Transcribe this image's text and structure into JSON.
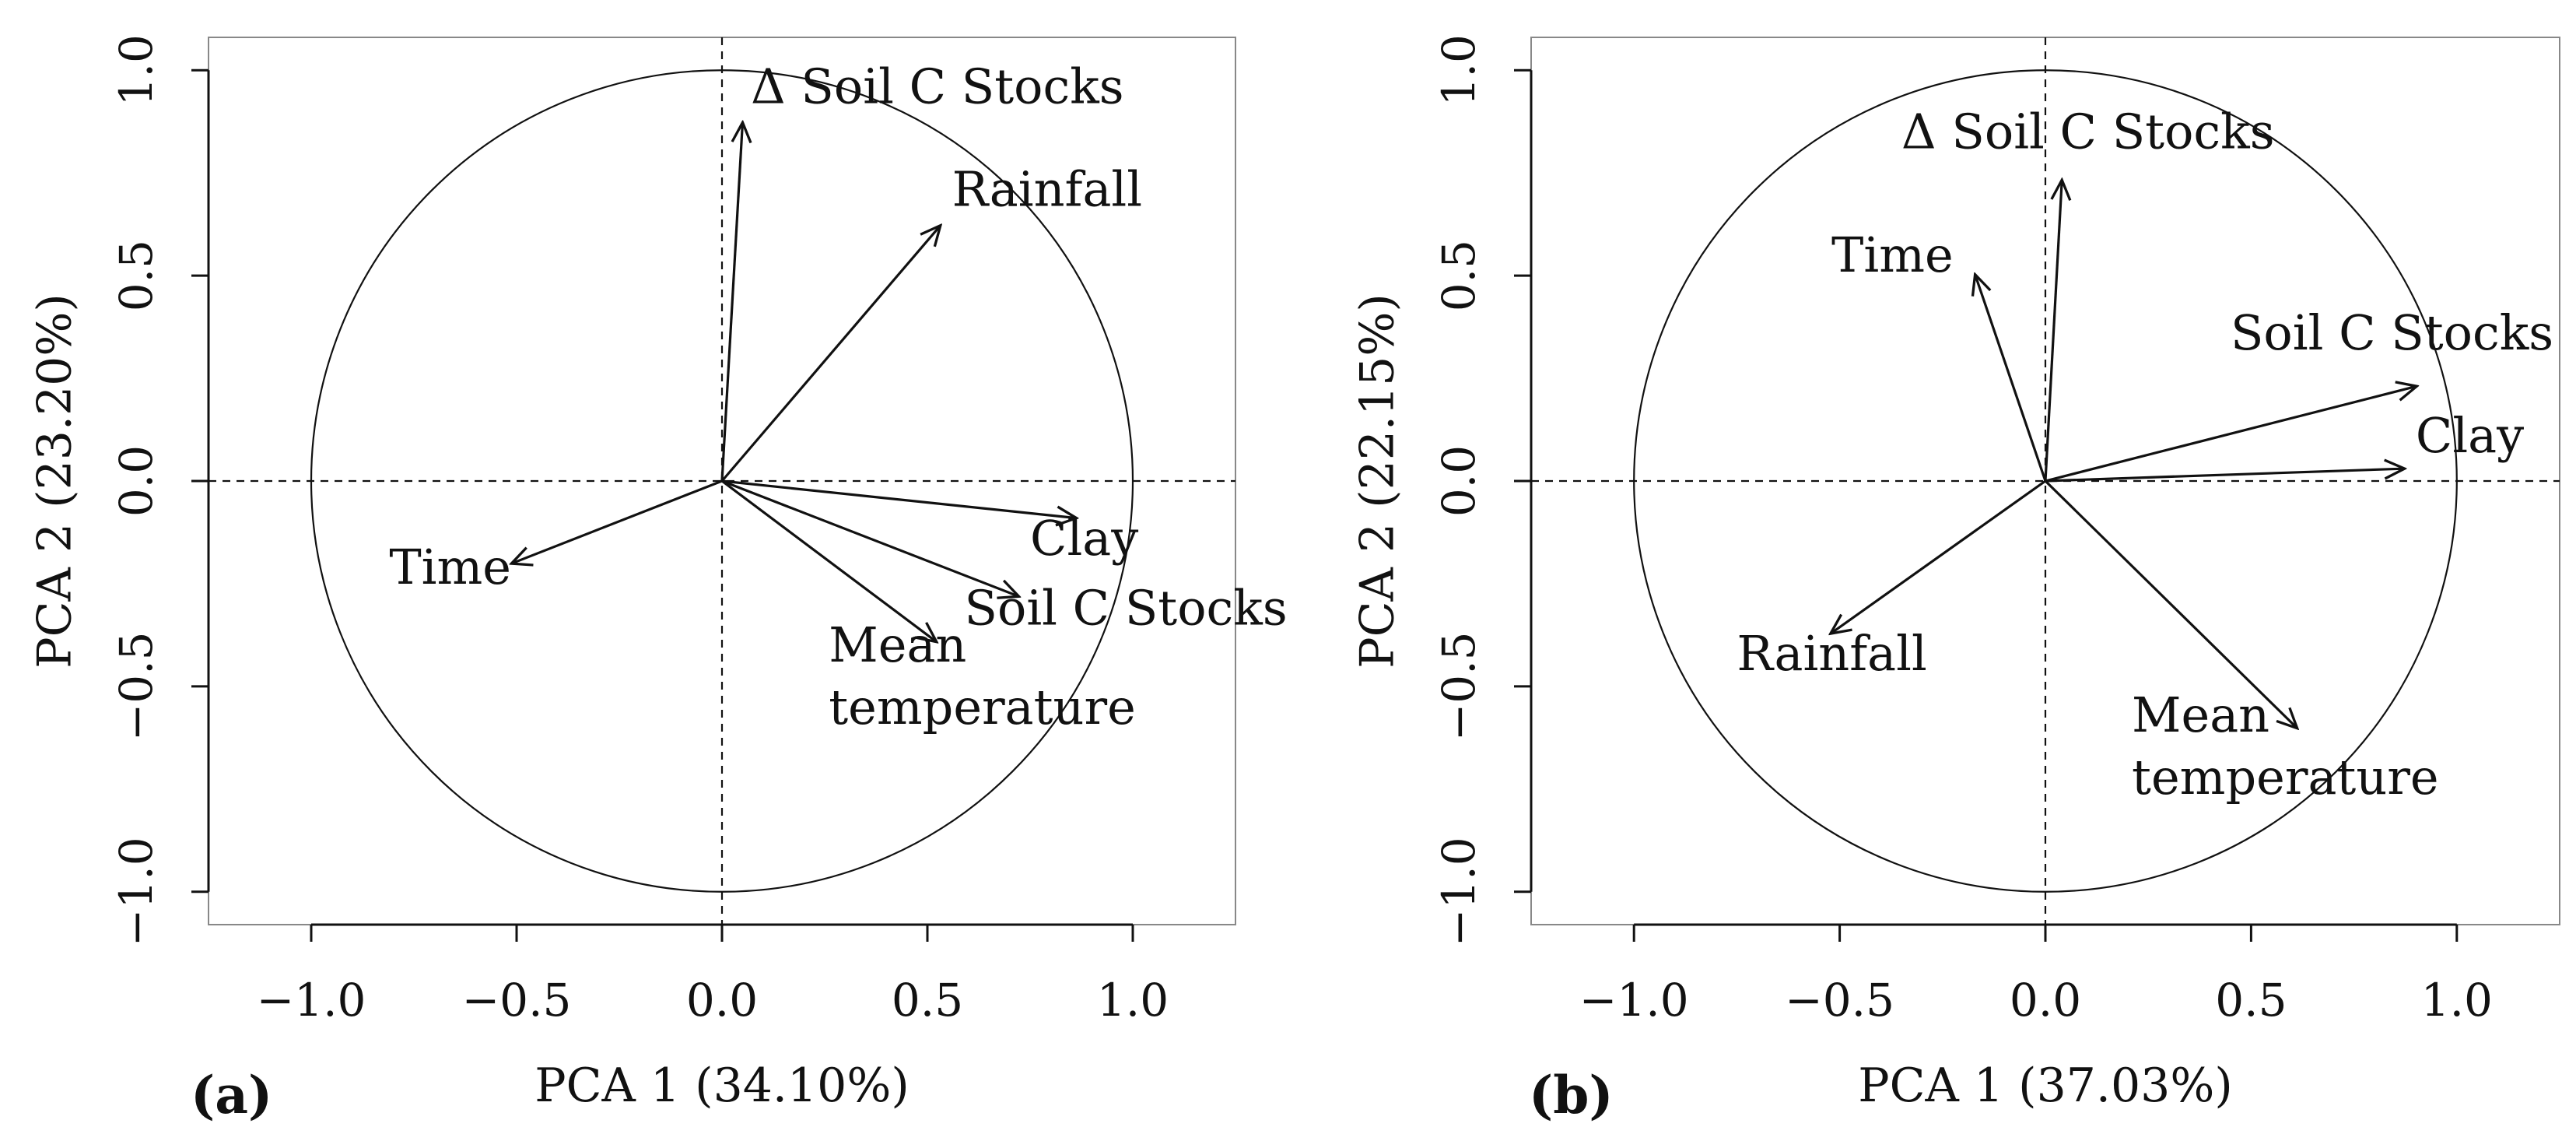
{
  "chart_data": [
    {
      "type": "scatter",
      "subtype": "pca-correlation-circle",
      "panel_label": "(a)",
      "xlabel": "PCA 1 (34.10%)",
      "ylabel": "PCA 2 (23.20%)",
      "xlim": [
        -1.25,
        1.25
      ],
      "ylim": [
        -1.08,
        1.08
      ],
      "xticks": [
        -1.0,
        -0.5,
        0.0,
        0.5,
        1.0
      ],
      "xtick_labels": [
        "−1.0",
        "−0.5",
        "0.0",
        "0.5",
        "1.0"
      ],
      "yticks": [
        -1.0,
        -0.5,
        0.0,
        0.5,
        1.0
      ],
      "ytick_labels": [
        "−1.0",
        "−0.5",
        "0.0",
        "0.5",
        "1.0"
      ],
      "circle_radius": 1.0,
      "reference_lines": "dashed at x=0 and y=0",
      "vectors": [
        {
          "name": "Δ Soil C Stocks",
          "x": 0.05,
          "y": 0.87,
          "label_lines": [
            "Δ Soil C Stocks"
          ],
          "label_x": 0.07,
          "label_y": 0.92
        },
        {
          "name": "Rainfall",
          "x": 0.53,
          "y": 0.62,
          "label_lines": [
            "Rainfall"
          ],
          "label_x": 0.56,
          "label_y": 0.67
        },
        {
          "name": "Clay",
          "x": 0.86,
          "y": -0.09,
          "label_lines": [
            "Clay"
          ],
          "label_x": 0.75,
          "label_y": -0.18
        },
        {
          "name": "Soil C Stocks",
          "x": 0.72,
          "y": -0.28,
          "label_lines": [
            "Soil C Stocks"
          ],
          "label_x": 0.59,
          "label_y": -0.35
        },
        {
          "name": "Mean temperature",
          "x": 0.52,
          "y": -0.39,
          "label_lines": [
            "Mean",
            "temperature"
          ],
          "label_x": 0.26,
          "label_y": -0.44
        },
        {
          "name": "Time",
          "x": -0.51,
          "y": -0.2,
          "label_lines": [
            "Time"
          ],
          "label_x": -0.81,
          "label_y": -0.25
        }
      ]
    },
    {
      "type": "scatter",
      "subtype": "pca-correlation-circle",
      "panel_label": "(b)",
      "xlabel": "PCA  1 (37.03%)",
      "ylabel": "PCA 2 (22.15%)",
      "xlim": [
        -1.25,
        1.25
      ],
      "ylim": [
        -1.08,
        1.08
      ],
      "xticks": [
        -1.0,
        -0.5,
        0.0,
        0.5,
        1.0
      ],
      "xtick_labels": [
        "−1.0",
        "−0.5",
        "0.0",
        "0.5",
        "1.0"
      ],
      "yticks": [
        -1.0,
        -0.5,
        0.0,
        0.5,
        1.0
      ],
      "ytick_labels": [
        "−1.0",
        "−0.5",
        "0.0",
        "0.5",
        "1.0"
      ],
      "circle_radius": 1.0,
      "reference_lines": "dashed at x=0 and y=0",
      "vectors": [
        {
          "name": "Δ Soil C Stocks",
          "x": 0.04,
          "y": 0.73,
          "label_lines": [
            "Δ Soil C Stocks"
          ],
          "label_x": -0.35,
          "label_y": 0.81
        },
        {
          "name": "Time",
          "x": -0.17,
          "y": 0.5,
          "label_lines": [
            "Time"
          ],
          "label_x": -0.52,
          "label_y": 0.51
        },
        {
          "name": "Soil C Stocks",
          "x": 0.9,
          "y": 0.23,
          "label_lines": [
            "Soil C Stocks"
          ],
          "label_x": 0.45,
          "label_y": 0.32
        },
        {
          "name": "Clay",
          "x": 0.87,
          "y": 0.03,
          "label_lines": [
            "Clay"
          ],
          "label_x": 0.9,
          "label_y": 0.07
        },
        {
          "name": "Rainfall",
          "x": -0.52,
          "y": -0.37,
          "label_lines": [
            "Rainfall"
          ],
          "label_x": -0.75,
          "label_y": -0.46
        },
        {
          "name": "Mean temperature",
          "x": 0.61,
          "y": -0.6,
          "label_lines": [
            "Mean",
            "temperature"
          ],
          "label_x": 0.21,
          "label_y": -0.61
        }
      ]
    }
  ]
}
